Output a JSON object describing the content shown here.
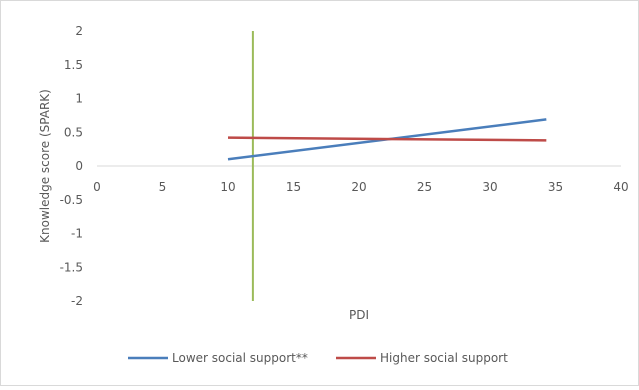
{
  "chart_data": {
    "type": "line",
    "xlabel": "PDI",
    "ylabel": "Knowledge score (SPARK)",
    "xlim": [
      0,
      40
    ],
    "ylim": [
      -2,
      2
    ],
    "x_ticks": [
      "0",
      "5",
      "10",
      "15",
      "20",
      "25",
      "30",
      "35",
      "40"
    ],
    "y_ticks": [
      "-2",
      "-1.5",
      "-1",
      "-0.5",
      "0",
      "0.5",
      "1",
      "1.5",
      "2"
    ],
    "series": [
      {
        "name": "Lower social support**",
        "color": "#4a7ebb",
        "x": [
          10,
          34.3
        ],
        "y": [
          0.1,
          0.69
        ]
      },
      {
        "name": "Higher social support",
        "color": "#be4b48",
        "x": [
          10,
          34.3
        ],
        "y": [
          0.42,
          0.38
        ]
      }
    ],
    "reference_line": {
      "x": 11.9,
      "color": "#9bbb59"
    },
    "legend_position": "bottom",
    "grid": false
  }
}
